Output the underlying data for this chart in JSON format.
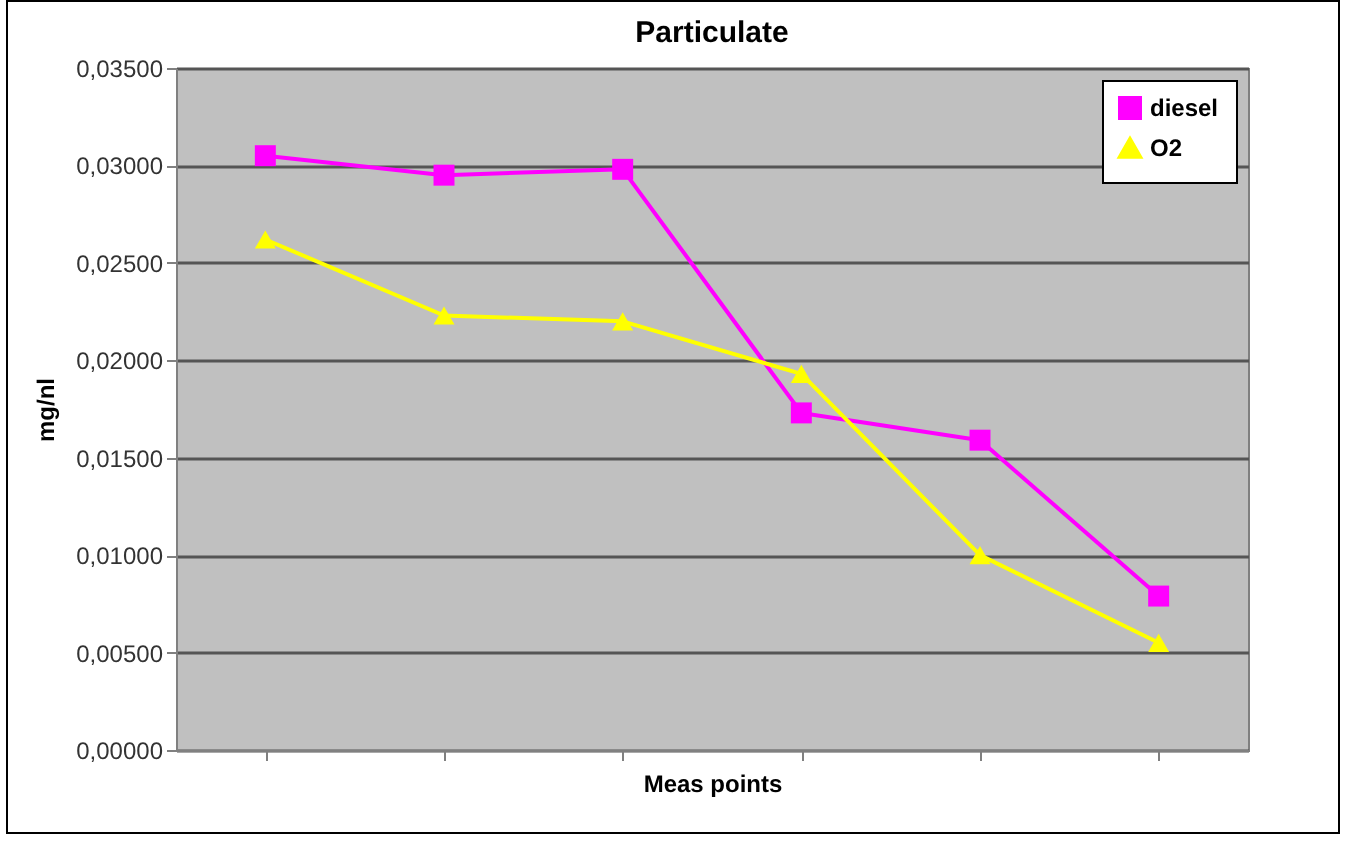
{
  "chart_data": {
    "type": "line",
    "title": "Particulate",
    "xlabel": "Meas points",
    "ylabel": "mg/nl",
    "categories": [
      null,
      null,
      null,
      null,
      null,
      null
    ],
    "series": [
      {
        "name": "diesel",
        "color": "#ff00ff",
        "marker": "square",
        "values": [
          0.0305,
          0.0295,
          0.0298,
          0.0173,
          0.0159,
          0.0079
        ]
      },
      {
        "name": "O2",
        "color": "#ffff00",
        "marker": "triangle",
        "values": [
          0.0262,
          0.0223,
          0.022,
          0.0193,
          0.01,
          0.0055
        ]
      }
    ],
    "ylim": [
      0,
      0.035
    ],
    "yticks": [
      {
        "value": 0,
        "label": "0,00000"
      },
      {
        "value": 0.005,
        "label": "0,00500"
      },
      {
        "value": 0.01,
        "label": "0,01000"
      },
      {
        "value": 0.015,
        "label": "0,01500"
      },
      {
        "value": 0.02,
        "label": "0,02000"
      },
      {
        "value": 0.025,
        "label": "0,02500"
      },
      {
        "value": 0.03,
        "label": "0,03000"
      },
      {
        "value": 0.035,
        "label": "0,03500"
      }
    ],
    "grid": "y",
    "legend": "top right",
    "tick_labels": "y"
  }
}
